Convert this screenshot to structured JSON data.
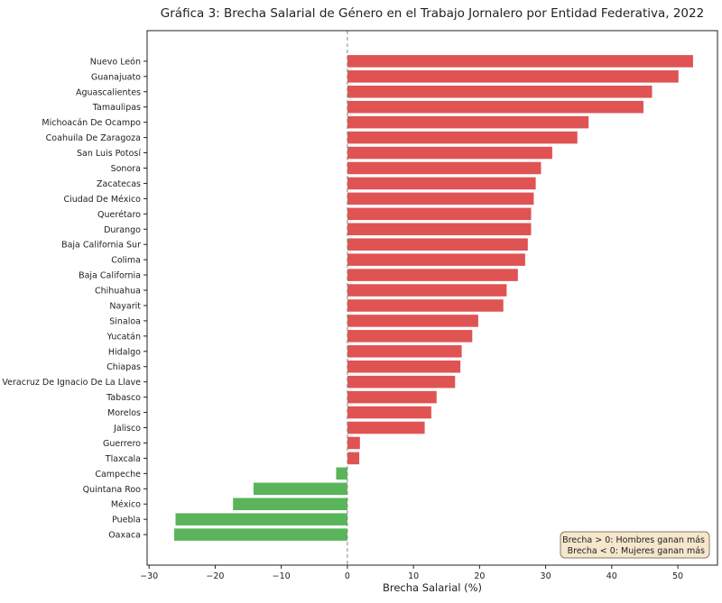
{
  "chart_data": {
    "type": "bar",
    "orientation": "horizontal",
    "title": "Gráfica 3: Brecha Salarial de Género en el Trabajo Jornalero por Entidad Federativa, 2022",
    "xlabel": "Brecha Salarial (%)",
    "ylabel": "",
    "xlim": [
      -30.3,
      56
    ],
    "xticks": [
      -30,
      -20,
      -10,
      0,
      10,
      20,
      30,
      40,
      50
    ],
    "grid": false,
    "reference_line": 0,
    "colors": {
      "positive": "#e05353",
      "negative": "#5ab55a"
    },
    "categories": [
      "Nuevo León",
      "Guanajuato",
      "Aguascalientes",
      "Tamaulipas",
      "Michoacán De Ocampo",
      "Coahuila De Zaragoza",
      "San Luis Potosí",
      "Sonora",
      "Zacatecas",
      "Ciudad De México",
      "Querétaro",
      "Durango",
      "Baja California Sur",
      "Colima",
      "Baja California",
      "Chihuahua",
      "Nayarit",
      "Sinaloa",
      "Yucatán",
      "Hidalgo",
      "Chiapas",
      "Veracruz De Ignacio De La Llave",
      "Tabasco",
      "Morelos",
      "Jalisco",
      "Guerrero",
      "Tlaxcala",
      "Campeche",
      "Quintana Roo",
      "México",
      "Puebla",
      "Oaxaca"
    ],
    "values": [
      52.3,
      50.1,
      46.1,
      44.8,
      36.5,
      34.8,
      31.0,
      29.3,
      28.5,
      28.2,
      27.8,
      27.8,
      27.3,
      26.9,
      25.8,
      24.1,
      23.6,
      19.8,
      18.9,
      17.3,
      17.1,
      16.3,
      13.5,
      12.7,
      11.7,
      1.9,
      1.8,
      -1.7,
      -14.2,
      -17.3,
      -26.0,
      -26.2
    ],
    "legend": {
      "placement": "bottom-right",
      "lines": [
        "Brecha > 0: Hombres ganan más",
        "Brecha < 0: Mujeres ganan más"
      ]
    }
  }
}
